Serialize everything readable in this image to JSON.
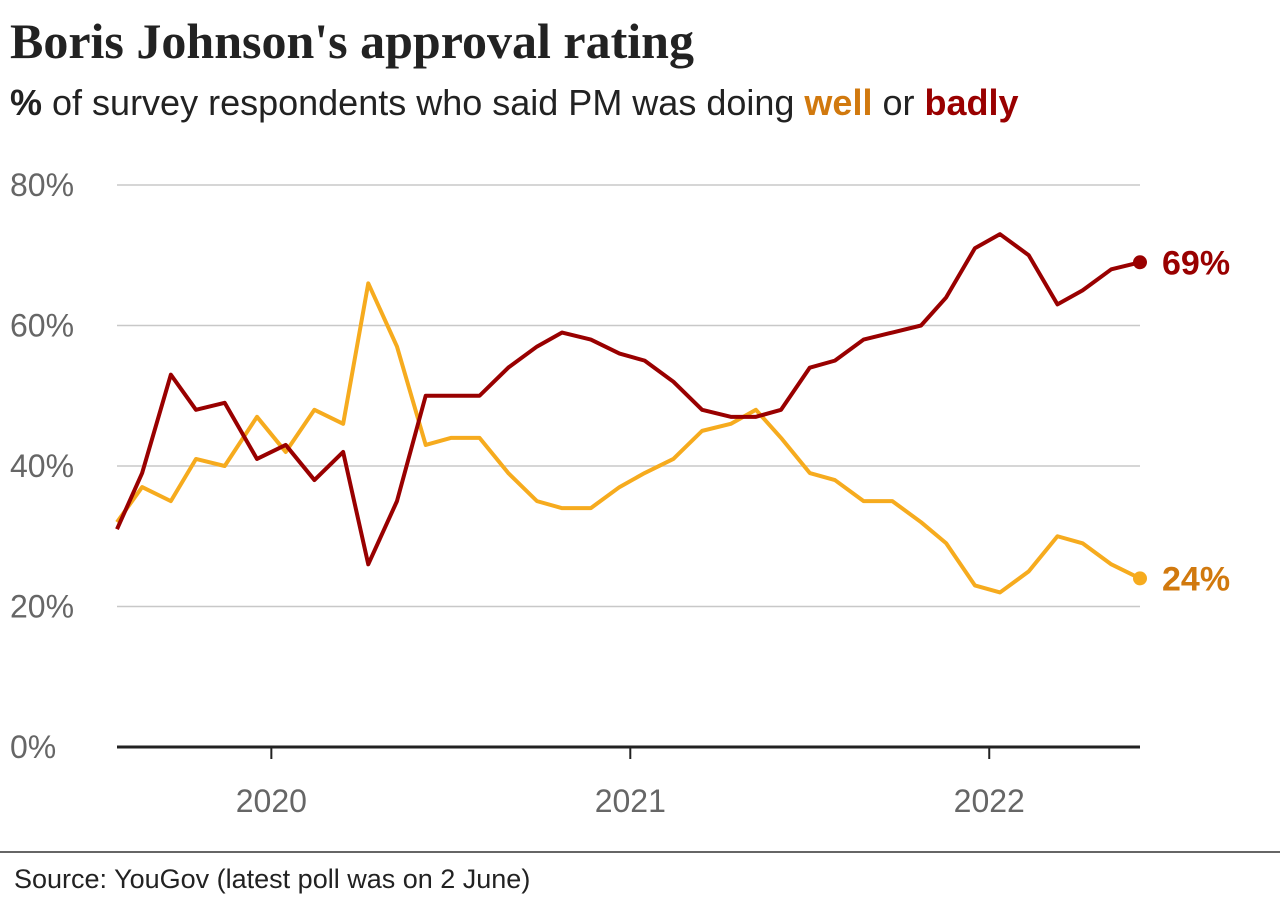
{
  "chart_data": {
    "type": "line",
    "title": "Boris Johnson's approval rating",
    "subtitle": [
      "%",
      " of survey respondents who said PM was doing ",
      " or "
    ],
    "source": "Source: YouGov (latest poll was on 2 June)",
    "x": [
      2019.57,
      2019.64,
      2019.72,
      2019.79,
      2019.87,
      2019.96,
      2020.04,
      2020.12,
      2020.2,
      2020.27,
      2020.35,
      2020.43,
      2020.5,
      2020.58,
      2020.66,
      2020.74,
      2020.81,
      2020.89,
      2020.97,
      2021.04,
      2021.12,
      2021.2,
      2021.28,
      2021.35,
      2021.42,
      2021.5,
      2021.57,
      2021.65,
      2021.73,
      2021.81,
      2021.88,
      2021.96,
      2022.03,
      2022.11,
      2022.19,
      2022.26,
      2022.34,
      2022.42
    ],
    "series": [
      {
        "name": "well",
        "color": "#f6ab1e",
        "label_color": "#d1790e",
        "values": [
          32,
          37,
          35,
          41,
          40,
          47,
          42,
          48,
          46,
          66,
          57,
          43,
          44,
          44,
          39,
          35,
          34,
          34,
          37,
          39,
          41,
          45,
          46,
          48,
          44,
          39,
          38,
          35,
          35,
          32,
          29,
          23,
          22,
          25,
          30,
          29,
          26,
          24
        ],
        "value_labels": [
          null,
          null,
          null,
          null,
          null,
          null,
          null,
          null,
          null,
          null,
          null,
          null,
          null,
          null,
          null,
          null,
          null,
          null,
          null,
          null,
          null,
          null,
          null,
          null,
          null,
          null,
          null,
          null,
          null,
          null,
          null,
          null,
          null,
          null,
          null,
          null,
          null,
          "24%"
        ]
      },
      {
        "name": "badly",
        "color": "#990000",
        "label_color": "#990000",
        "values": [
          31,
          39,
          53,
          48,
          49,
          41,
          43,
          38,
          42,
          26,
          35,
          50,
          50,
          50,
          54,
          57,
          59,
          58,
          56,
          55,
          52,
          48,
          47,
          47,
          48,
          54,
          55,
          58,
          59,
          60,
          64,
          71,
          73,
          70,
          63,
          65,
          68,
          69
        ],
        "value_labels": [
          null,
          null,
          null,
          null,
          null,
          null,
          null,
          null,
          null,
          null,
          null,
          null,
          null,
          null,
          null,
          null,
          null,
          null,
          null,
          null,
          null,
          null,
          null,
          null,
          null,
          null,
          null,
          null,
          null,
          null,
          null,
          null,
          null,
          null,
          null,
          null,
          null,
          "69%"
        ]
      }
    ],
    "xlim": [
      2019.57,
      2022.42
    ],
    "xticks": [
      2020,
      2021,
      2022
    ],
    "ylim": [
      0,
      80
    ],
    "yticks": [
      {
        "value": 0,
        "label": "0%"
      },
      {
        "value": 20,
        "label": "20%"
      },
      {
        "value": 40,
        "label": "40%"
      },
      {
        "value": 60,
        "label": "60%"
      },
      {
        "value": 80,
        "label": "80%"
      }
    ],
    "grid": true
  }
}
